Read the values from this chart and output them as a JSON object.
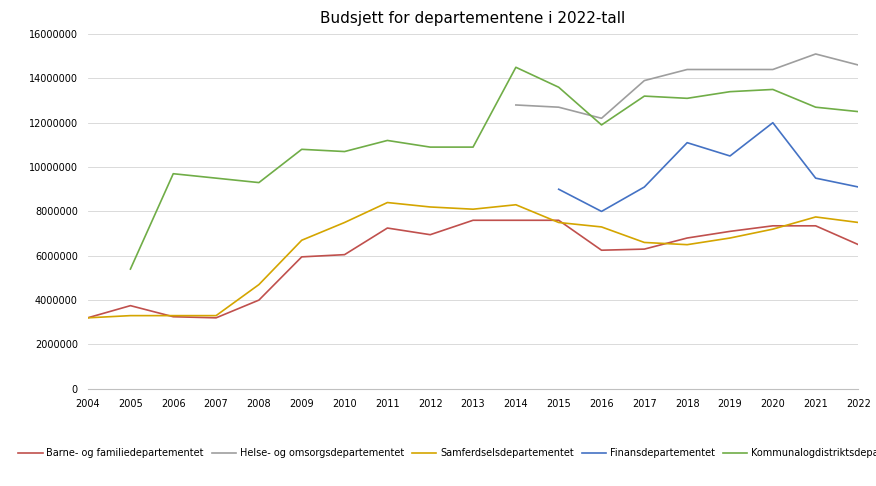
{
  "title": "Budsjett for departementene i 2022-tall",
  "series_years": {
    "Barne- og familiedepartementet": [
      2004,
      2005,
      2006,
      2007,
      2008,
      2009,
      2010,
      2011,
      2012,
      2013,
      2014,
      2015,
      2016,
      2017,
      2018,
      2019,
      2020,
      2021,
      2022
    ],
    "Helse- og omsorgsdepartementet": [
      2014,
      2015,
      2016,
      2017,
      2018,
      2019,
      2020,
      2021,
      2022
    ],
    "Samferdselsdepartementet": [
      2004,
      2005,
      2006,
      2007,
      2008,
      2009,
      2010,
      2011,
      2012,
      2013,
      2014,
      2015,
      2016,
      2017,
      2018,
      2019,
      2020,
      2021,
      2022
    ],
    "Finansdepartementet": [
      2015,
      2016,
      2017,
      2018,
      2019,
      2020,
      2021,
      2022
    ],
    "Kommunalogdistriktsdepartementet": [
      2005,
      2006,
      2007,
      2008,
      2009,
      2010,
      2011,
      2012,
      2013,
      2014,
      2015,
      2016,
      2017,
      2018,
      2019,
      2020,
      2021,
      2022
    ]
  },
  "series_values": {
    "Barne- og familiedepartementet": [
      3200000,
      3750000,
      3250000,
      3200000,
      4000000,
      5950000,
      6050000,
      7250000,
      6950000,
      7600000,
      7600000,
      7600000,
      6250000,
      6300000,
      6800000,
      7100000,
      7350000,
      7350000,
      6500000
    ],
    "Helse- og omsorgsdepartementet": [
      12800000,
      12700000,
      12200000,
      13900000,
      14400000,
      14400000,
      14400000,
      15100000,
      14600000
    ],
    "Samferdselsdepartementet": [
      3200000,
      3300000,
      3300000,
      3300000,
      4700000,
      6700000,
      7500000,
      8400000,
      8200000,
      8100000,
      8300000,
      7500000,
      7300000,
      6600000,
      6500000,
      6800000,
      7200000,
      7750000,
      7500000
    ],
    "Finansdepartementet": [
      9000000,
      8000000,
      9100000,
      11100000,
      10500000,
      12000000,
      9500000,
      9100000
    ],
    "Kommunalogdistriktsdepartementet": [
      5400000,
      9700000,
      9500000,
      9300000,
      10800000,
      10700000,
      11200000,
      10900000,
      10900000,
      14500000,
      13600000,
      11900000,
      13200000,
      13100000,
      13400000,
      13500000,
      12700000,
      12500000
    ]
  },
  "colors": {
    "Barne- og familiedepartementet": "#c0504d",
    "Helse- og omsorgsdepartementet": "#9e9e9e",
    "Samferdselsdepartementet": "#d4a500",
    "Finansdepartementet": "#4472c4",
    "Kommunalogdistriktsdepartementet": "#70ad47"
  },
  "ylim": [
    0,
    16000000
  ],
  "yticks": [
    0,
    2000000,
    4000000,
    6000000,
    8000000,
    10000000,
    12000000,
    14000000,
    16000000
  ],
  "xlim": [
    2004,
    2022
  ],
  "xticks": [
    2004,
    2005,
    2006,
    2007,
    2008,
    2009,
    2010,
    2011,
    2012,
    2013,
    2014,
    2015,
    2016,
    2017,
    2018,
    2019,
    2020,
    2021,
    2022
  ],
  "background_color": "#ffffff",
  "grid_color": "#d5d5d5",
  "title_fontsize": 11,
  "tick_fontsize": 7,
  "legend_fontsize": 7
}
